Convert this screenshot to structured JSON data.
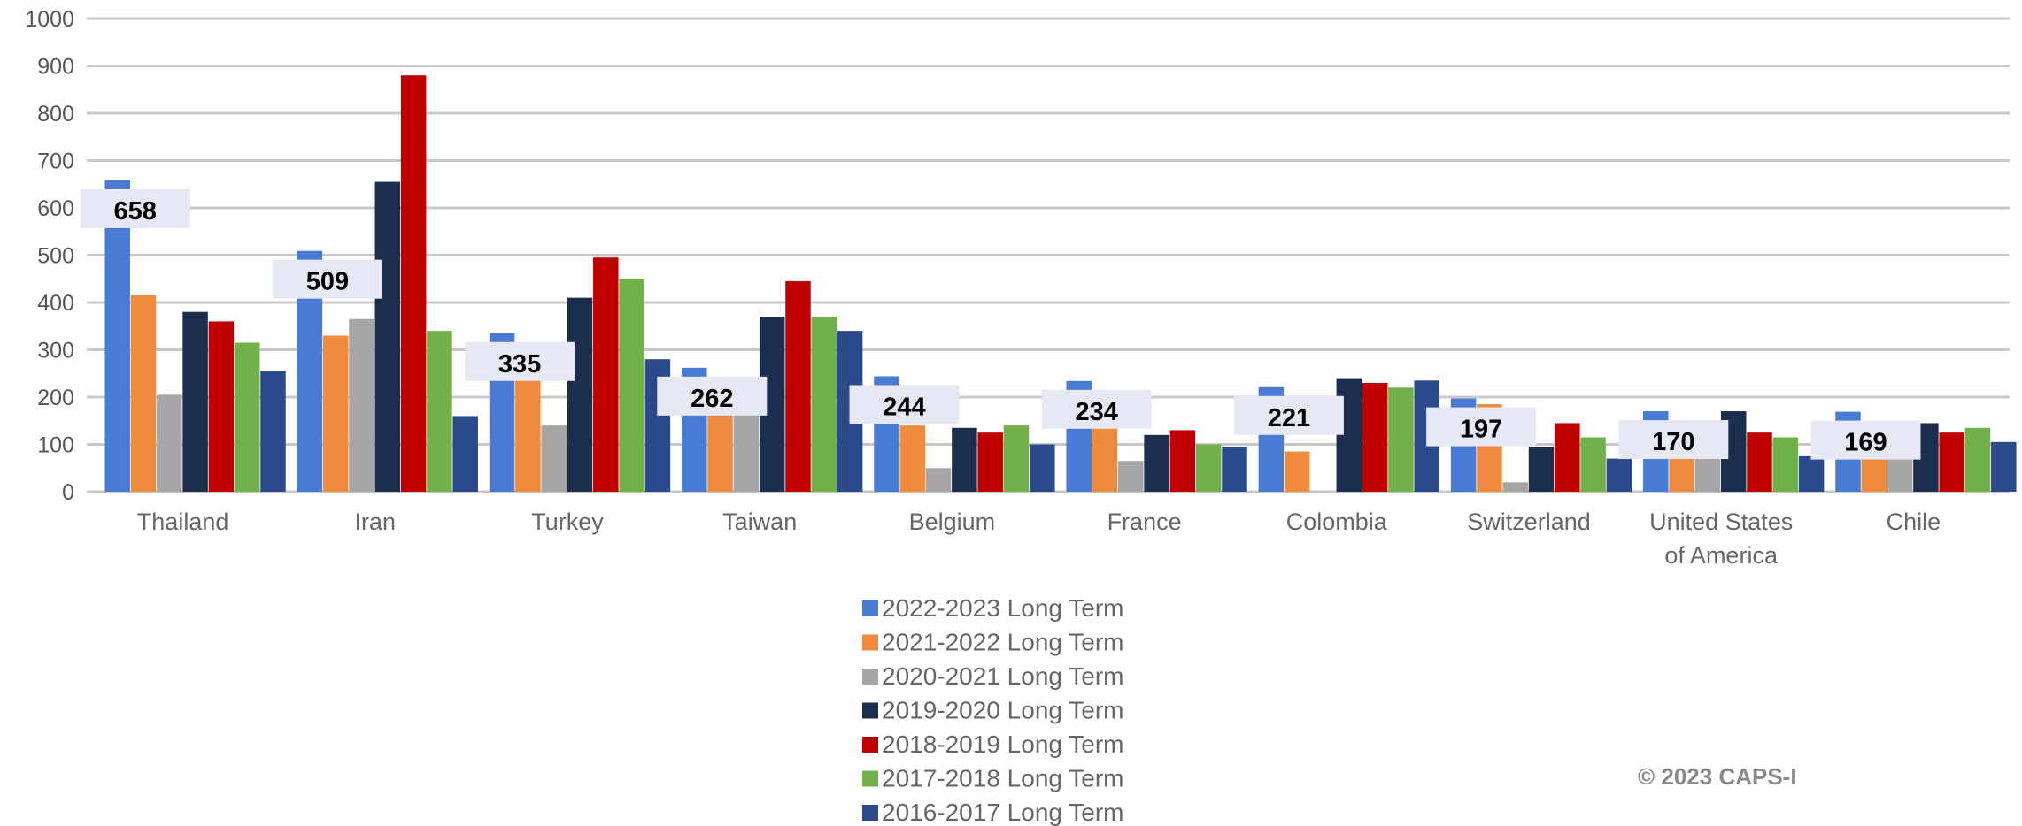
{
  "chart_data": {
    "type": "bar",
    "categories": [
      "Thailand",
      "Iran",
      "Turkey",
      "Taiwan",
      "Belgium",
      "France",
      "Colombia",
      "Switzerland",
      "United States of America",
      "Chile"
    ],
    "category_label_lines": [
      [
        "Thailand"
      ],
      [
        "Iran"
      ],
      [
        "Turkey"
      ],
      [
        "Taiwan"
      ],
      [
        "Belgium"
      ],
      [
        "France"
      ],
      [
        "Colombia"
      ],
      [
        "Switzerland"
      ],
      [
        "United States",
        "of America"
      ],
      [
        "Chile"
      ]
    ],
    "series": [
      {
        "name": "2022-2023 Long Term",
        "color": "#4a7bd4",
        "values": [
          658,
          509,
          335,
          262,
          244,
          234,
          221,
          197,
          170,
          169
        ]
      },
      {
        "name": "2021-2022 Long Term",
        "color": "#ef8b3f",
        "values": [
          415,
          330,
          250,
          200,
          140,
          140,
          85,
          185,
          115,
          145
        ]
      },
      {
        "name": "2020-2021 Long Term",
        "color": "#a6a6a6",
        "values": [
          205,
          365,
          140,
          235,
          50,
          65,
          0,
          20,
          85,
          100
        ]
      },
      {
        "name": "2019-2020 Long Term",
        "color": "#1b2e4e",
        "values": [
          380,
          655,
          410,
          370,
          135,
          120,
          240,
          95,
          170,
          145
        ]
      },
      {
        "name": "2018-2019 Long Term",
        "color": "#c00000",
        "values": [
          360,
          880,
          495,
          445,
          125,
          130,
          230,
          145,
          125,
          125
        ]
      },
      {
        "name": "2017-2018 Long Term",
        "color": "#72b04a",
        "values": [
          315,
          340,
          450,
          370,
          140,
          100,
          220,
          115,
          115,
          135
        ]
      },
      {
        "name": "2016-2017 Long Term",
        "color": "#2a4a8c",
        "values": [
          255,
          160,
          280,
          340,
          100,
          95,
          235,
          70,
          75,
          105
        ]
      }
    ],
    "data_labels": [
      "658",
      "509",
      "335",
      "262",
      "244",
      "234",
      "221",
      "197",
      "170",
      "169"
    ],
    "y_ticks": [
      "0",
      "100",
      "200",
      "300",
      "400",
      "500",
      "600",
      "700",
      "800",
      "900",
      "1000"
    ],
    "ylim": [
      0,
      1000
    ],
    "grid": true,
    "legend_position": "bottom",
    "title": "",
    "xlabel": "",
    "ylabel": "",
    "copyright": "© 2023 CAPS-I"
  }
}
